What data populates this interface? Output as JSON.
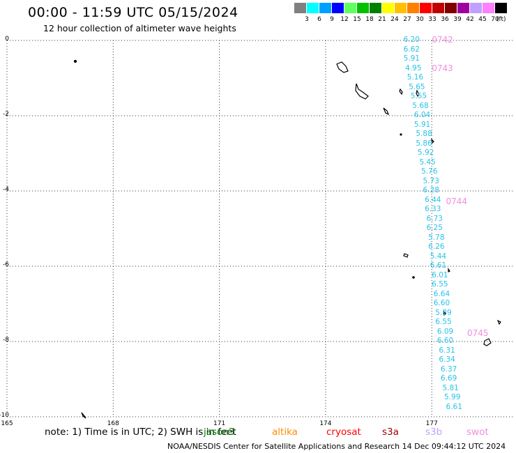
{
  "title": "00:00 - 11:59 UTC 05/15/2024",
  "subtitle": "12 hour collection of altimeter wave heights",
  "color_scale": {
    "labels": [
      "3",
      "6",
      "9",
      "12",
      "15",
      "18",
      "21",
      "24",
      "27",
      "30",
      "33",
      "36",
      "39",
      "42",
      "45",
      "70"
    ],
    "unit": "(ft)",
    "colors": [
      "#808080",
      "#00ffff",
      "#00a0ff",
      "#0000ff",
      "#60ff60",
      "#00c000",
      "#008000",
      "#ffff00",
      "#ffc000",
      "#ff8000",
      "#ff0000",
      "#c00000",
      "#800000",
      "#a000a0",
      "#c0a0ff",
      "#ff80ff",
      "#000000"
    ]
  },
  "axes": {
    "lat_ticks": [
      "0",
      "-2",
      "-4",
      "-6",
      "-8",
      "-10"
    ],
    "lon_ticks": [
      "165",
      "168",
      "171",
      "174",
      "177"
    ],
    "lat_range": [
      -10,
      0
    ],
    "lon_range": [
      165,
      179.3
    ]
  },
  "chart_data": {
    "type": "scatter",
    "passes": [
      {
        "label": "0742",
        "lat": 0.0,
        "lon": 177.0
      },
      {
        "label": "0743",
        "lat": -0.75,
        "lon": 177.0
      },
      {
        "label": "0744",
        "lat": -4.3,
        "lon": 177.4
      },
      {
        "label": "0745",
        "lat": -7.8,
        "lon": 178.0
      }
    ],
    "swh_ft": [
      {
        "value": "6.20",
        "lat": 0.0,
        "lon": 176.2
      },
      {
        "value": "6.62",
        "lat": -0.25,
        "lon": 176.2
      },
      {
        "value": "5.91",
        "lat": -0.5,
        "lon": 176.2
      },
      {
        "value": "4.95",
        "lat": -0.75,
        "lon": 176.25
      },
      {
        "value": "5.16",
        "lat": -1.0,
        "lon": 176.3
      },
      {
        "value": "5.65",
        "lat": -1.25,
        "lon": 176.35
      },
      {
        "value": "5.55",
        "lat": -1.5,
        "lon": 176.4
      },
      {
        "value": "5.68",
        "lat": -1.75,
        "lon": 176.45
      },
      {
        "value": "6.04",
        "lat": -2.0,
        "lon": 176.5
      },
      {
        "value": "5.91",
        "lat": -2.25,
        "lon": 176.5
      },
      {
        "value": "5.88",
        "lat": -2.5,
        "lon": 176.55
      },
      {
        "value": "5.86",
        "lat": -2.75,
        "lon": 176.55
      },
      {
        "value": "5.92",
        "lat": -3.0,
        "lon": 176.6
      },
      {
        "value": "5.45",
        "lat": -3.25,
        "lon": 176.65
      },
      {
        "value": "5.76",
        "lat": -3.5,
        "lon": 176.7
      },
      {
        "value": "5.73",
        "lat": -3.75,
        "lon": 176.75
      },
      {
        "value": "6.28",
        "lat": -4.0,
        "lon": 176.75
      },
      {
        "value": "6.44",
        "lat": -4.25,
        "lon": 176.8
      },
      {
        "value": "6.33",
        "lat": -4.5,
        "lon": 176.8
      },
      {
        "value": "6.73",
        "lat": -4.75,
        "lon": 176.85
      },
      {
        "value": "6.25",
        "lat": -5.0,
        "lon": 176.85
      },
      {
        "value": "5.78",
        "lat": -5.25,
        "lon": 176.9
      },
      {
        "value": "6.26",
        "lat": -5.5,
        "lon": 176.9
      },
      {
        "value": "5.44",
        "lat": -5.75,
        "lon": 176.95
      },
      {
        "value": "6.61",
        "lat": -6.0,
        "lon": 176.95
      },
      {
        "value": "6.01",
        "lat": -6.25,
        "lon": 177.0
      },
      {
        "value": "6.55",
        "lat": -6.5,
        "lon": 177.0
      },
      {
        "value": "6.64",
        "lat": -6.75,
        "lon": 177.05
      },
      {
        "value": "6.60",
        "lat": -7.0,
        "lon": 177.05
      },
      {
        "value": "5.89",
        "lat": -7.25,
        "lon": 177.1
      },
      {
        "value": "6.55",
        "lat": -7.5,
        "lon": 177.1
      },
      {
        "value": "6.09",
        "lat": -7.75,
        "lon": 177.15
      },
      {
        "value": "6.60",
        "lat": -8.0,
        "lon": 177.15
      },
      {
        "value": "6.31",
        "lat": -8.25,
        "lon": 177.2
      },
      {
        "value": "6.34",
        "lat": -8.5,
        "lon": 177.2
      },
      {
        "value": "6.37",
        "lat": -8.75,
        "lon": 177.25
      },
      {
        "value": "6.69",
        "lat": -9.0,
        "lon": 177.25
      },
      {
        "value": "5.81",
        "lat": -9.25,
        "lon": 177.3
      },
      {
        "value": "5.99",
        "lat": -9.5,
        "lon": 177.35
      },
      {
        "value": "6.61",
        "lat": -9.75,
        "lon": 177.4
      }
    ]
  },
  "note": "note: 1) Time is in UTC; 2) SWH is in feet",
  "legend": [
    {
      "name": "jason3",
      "color": "#008000"
    },
    {
      "name": "altika",
      "color": "#ff8c00"
    },
    {
      "name": "cryosat",
      "color": "#ff0000"
    },
    {
      "name": "s3a",
      "color": "#a00000"
    },
    {
      "name": "s3b",
      "color": "#c0a0ff"
    },
    {
      "name": "swot",
      "color": "#f08ee0"
    }
  ],
  "footer": "NOAA/NESDIS Center for Satellite Applications and Research    14 Dec 09:44:12 UTC 2024"
}
